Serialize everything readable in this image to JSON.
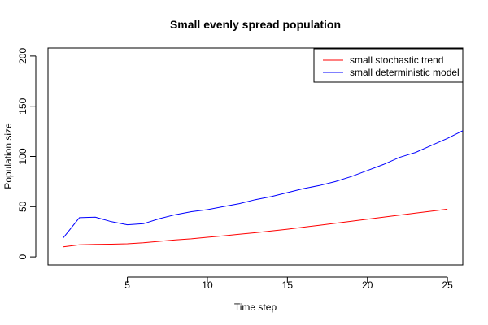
{
  "chart_data": {
    "type": "line",
    "title": "Small evenly spread population",
    "xlabel": "Time step",
    "ylabel": "Population size",
    "xlim": [
      0.04,
      25.96
    ],
    "ylim": [
      -8,
      208
    ],
    "xticks": [
      5,
      10,
      15,
      20,
      25
    ],
    "yticks": [
      0,
      50,
      100,
      150,
      200
    ],
    "grid": false,
    "legend_position": "top-right",
    "series": [
      {
        "name": "small stochastic trend",
        "color": "#ff0000",
        "x": [
          1,
          2,
          3,
          4,
          5,
          6,
          7,
          8,
          9,
          10,
          11,
          12,
          13,
          14,
          15,
          16,
          17,
          18,
          19,
          20,
          21,
          22,
          23,
          24,
          25
        ],
        "y": [
          10,
          12,
          12.5,
          12.6,
          13,
          14,
          15.5,
          16.8,
          18,
          19.5,
          21,
          22.5,
          24,
          25.8,
          27.5,
          29.5,
          31.5,
          33.5,
          35.5,
          37.5,
          39.5,
          41.5,
          43.5,
          45.5,
          47.5
        ]
      },
      {
        "name": "small deterministic model",
        "color": "#0000ff",
        "x": [
          1,
          2,
          3,
          4,
          5,
          6,
          7,
          8,
          9,
          10,
          11,
          12,
          13,
          14,
          15,
          16,
          17,
          18,
          19,
          20,
          21,
          22,
          23,
          24,
          25,
          26
        ],
        "y": [
          19,
          39,
          39.5,
          35,
          32,
          33,
          38,
          42,
          45,
          47,
          50,
          53,
          57,
          60,
          64,
          68,
          71,
          75,
          80,
          86,
          92,
          99,
          104,
          111,
          118,
          126
        ]
      }
    ]
  }
}
